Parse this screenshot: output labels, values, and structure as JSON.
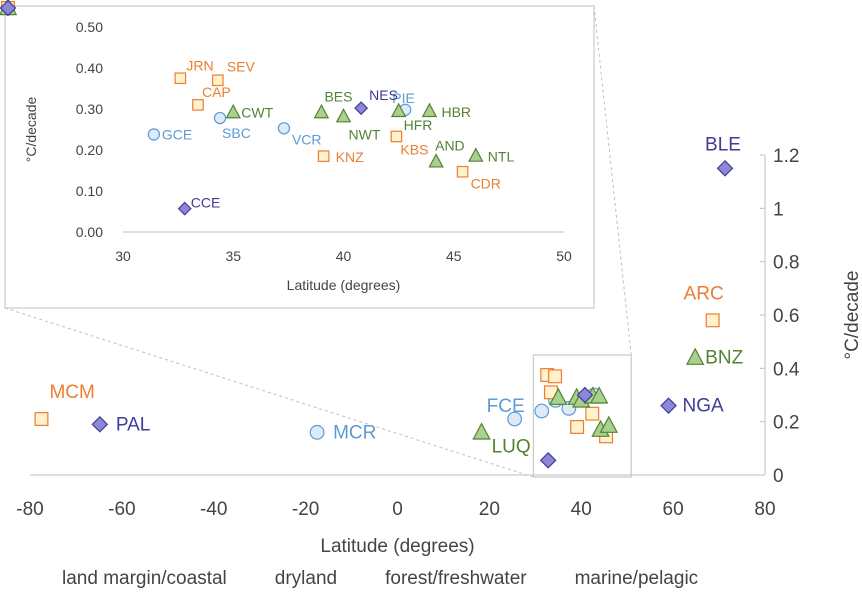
{
  "chart_data": [
    {
      "type": "scatter",
      "panel": "main",
      "xlabel": "Latitude (degrees)",
      "ylabel": "°C/decade",
      "xlim": [
        -80,
        80
      ],
      "ylim": [
        0,
        1.2
      ],
      "x_ticks": [
        "-80",
        "-60",
        "-40",
        "-20",
        "0",
        "20",
        "40",
        "60",
        "80"
      ],
      "y_ticks": [
        "0",
        "0.2",
        "0.4",
        "0.6",
        "0.8",
        "1",
        "1.2"
      ],
      "y_axis_side": "right",
      "grid": false,
      "legend_position": "bottom",
      "series": [
        {
          "name": "land margin/coastal",
          "marker": "circle",
          "points": [
            {
              "label": "MCR",
              "x": -17.5,
              "y": 0.16
            },
            {
              "label": "FCE",
              "x": 25.5,
              "y": 0.21
            },
            {
              "x": 31.4,
              "y": 0.24
            },
            {
              "x": 34.4,
              "y": 0.28
            },
            {
              "x": 37.3,
              "y": 0.25
            },
            {
              "x": 42.8,
              "y": 0.3
            }
          ]
        },
        {
          "name": "dryland",
          "marker": "square",
          "points": [
            {
              "label": "MCM",
              "x": -77.5,
              "y": 0.21
            },
            {
              "label": "ARC",
              "x": 68.6,
              "y": 0.58
            },
            {
              "x": 32.6,
              "y": 0.375
            },
            {
              "x": 34.3,
              "y": 0.37
            },
            {
              "x": 33.4,
              "y": 0.31
            },
            {
              "x": 42.4,
              "y": 0.23
            },
            {
              "x": 39.1,
              "y": 0.18
            },
            {
              "x": 45.4,
              "y": 0.145
            }
          ]
        },
        {
          "name": "forest/freshwater",
          "marker": "triangle",
          "points": [
            {
              "label": "BNZ",
              "x": 64.8,
              "y": 0.44
            },
            {
              "label": "LUQ",
              "x": 18.3,
              "y": 0.16
            },
            {
              "x": 35.0,
              "y": 0.29
            },
            {
              "x": 39.0,
              "y": 0.29
            },
            {
              "x": 40.0,
              "y": 0.28
            },
            {
              "x": 42.5,
              "y": 0.295
            },
            {
              "x": 43.9,
              "y": 0.295
            },
            {
              "x": 44.2,
              "y": 0.17
            },
            {
              "x": 46.0,
              "y": 0.185
            }
          ]
        },
        {
          "name": "marine/pelagic",
          "marker": "diamond",
          "points": [
            {
              "label": "PAL",
              "x": -64.8,
              "y": 0.19
            },
            {
              "label": "NGA",
              "x": 59.0,
              "y": 0.26
            },
            {
              "label": "BLE",
              "x": 71.3,
              "y": 1.15
            },
            {
              "x": 32.8,
              "y": 0.055
            },
            {
              "x": 40.8,
              "y": 0.3
            }
          ]
        }
      ]
    },
    {
      "type": "scatter",
      "panel": "inset",
      "xlabel": "Latitude (degrees)",
      "ylabel": "°C/decade",
      "xlim": [
        30,
        50
      ],
      "ylim": [
        0,
        0.5
      ],
      "x_ticks": [
        "30",
        "35",
        "40",
        "45",
        "50"
      ],
      "y_ticks": [
        "0.00",
        "0.10",
        "0.20",
        "0.30",
        "0.40",
        "0.50"
      ],
      "grid": false,
      "series": [
        {
          "name": "land margin/coastal",
          "marker": "circle",
          "points": [
            {
              "label": "GCE",
              "x": 31.4,
              "y": 0.238
            },
            {
              "label": "SBC",
              "x": 34.4,
              "y": 0.278
            },
            {
              "label": "VCR",
              "x": 37.3,
              "y": 0.253
            },
            {
              "label": "PIE",
              "x": 42.8,
              "y": 0.298
            }
          ]
        },
        {
          "name": "dryland",
          "marker": "square",
          "points": [
            {
              "label": "JRN",
              "x": 32.6,
              "y": 0.375
            },
            {
              "label": "SEV",
              "x": 34.3,
              "y": 0.37
            },
            {
              "label": "CAP",
              "x": 33.4,
              "y": 0.31
            },
            {
              "label": "KBS",
              "x": 42.4,
              "y": 0.233
            },
            {
              "label": "KNZ",
              "x": 39.1,
              "y": 0.185
            },
            {
              "label": "CDR",
              "x": 45.4,
              "y": 0.147
            }
          ]
        },
        {
          "name": "forest/freshwater",
          "marker": "triangle",
          "points": [
            {
              "label": "CWT",
              "x": 35.0,
              "y": 0.292
            },
            {
              "label": "BES",
              "x": 39.0,
              "y": 0.292
            },
            {
              "label": "NWT",
              "x": 40.0,
              "y": 0.282
            },
            {
              "label": "HFR",
              "x": 42.5,
              "y": 0.295
            },
            {
              "label": "HBR",
              "x": 43.9,
              "y": 0.295
            },
            {
              "label": "AND",
              "x": 44.2,
              "y": 0.172
            },
            {
              "label": "NTL",
              "x": 46.0,
              "y": 0.186
            }
          ]
        },
        {
          "name": "marine/pelagic",
          "marker": "diamond",
          "points": [
            {
              "label": "NES",
              "x": 40.8,
              "y": 0.302
            },
            {
              "label": "CCE",
              "x": 32.8,
              "y": 0.057
            }
          ]
        }
      ]
    }
  ],
  "colors": {
    "land margin/coastal": {
      "fill": "#deebf7",
      "stroke": "#5b9bd5",
      "text": "#5b9bd5"
    },
    "dryland": {
      "fill": "#fff2cc",
      "stroke": "#ed7d31",
      "text": "#ed7d31"
    },
    "forest/freshwater": {
      "fill": "#a9d18e",
      "stroke": "#548235",
      "text": "#548235"
    },
    "marine/pelagic": {
      "fill": "#8e86d6",
      "stroke": "#3f3c96",
      "text": "#3f3c96"
    }
  }
}
